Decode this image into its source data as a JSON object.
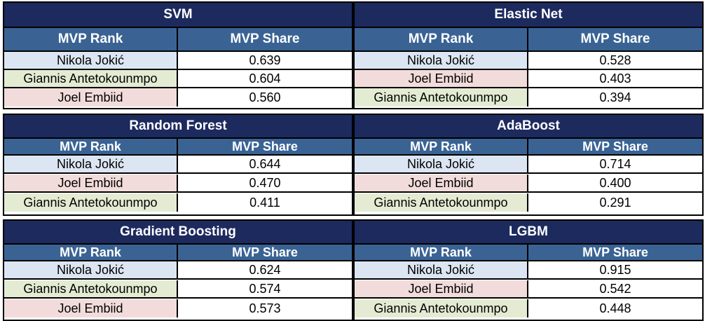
{
  "colors": {
    "title_bg": "#1c2a5e",
    "header_bg": "#3a6394",
    "jokic_bg": "#dce6f2",
    "giannis_bg": "#e3ecd3",
    "embiid_bg": "#f2dcdb"
  },
  "tables": [
    {
      "title": "SVM",
      "col1": "MVP Rank",
      "col2": "MVP Share",
      "rows": [
        {
          "player": "Nikola Jokić",
          "share": "0.639",
          "color": "#dce6f2"
        },
        {
          "player": "Giannis Antetokounmpo",
          "share": "0.604",
          "color": "#e3ecd3"
        },
        {
          "player": "Joel Embiid",
          "share": "0.560",
          "color": "#f2dcdb"
        }
      ]
    },
    {
      "title": "Elastic Net",
      "col1": "MVP Rank",
      "col2": "MVP Share",
      "rows": [
        {
          "player": "Nikola Jokić",
          "share": "0.528",
          "color": "#dce6f2"
        },
        {
          "player": "Joel Embiid",
          "share": "0.403",
          "color": "#f2dcdb"
        },
        {
          "player": "Giannis Antetokounmpo",
          "share": "0.394",
          "color": "#e3ecd3"
        }
      ]
    },
    {
      "title": "Random Forest",
      "col1": "MVP Rank",
      "col2": "MVP Share",
      "rows": [
        {
          "player": "Nikola Jokić",
          "share": "0.644",
          "color": "#dce6f2"
        },
        {
          "player": "Joel Embiid",
          "share": "0.470",
          "color": "#f2dcdb"
        },
        {
          "player": "Giannis Antetokounmpo",
          "share": "0.411",
          "color": "#e3ecd3"
        }
      ]
    },
    {
      "title": "AdaBoost",
      "col1": "MVP Rank",
      "col2": "MVP Share",
      "rows": [
        {
          "player": "Nikola Jokić",
          "share": "0.714",
          "color": "#dce6f2"
        },
        {
          "player": "Joel Embiid",
          "share": "0.400",
          "color": "#f2dcdb"
        },
        {
          "player": "Giannis Antetokounmpo",
          "share": "0.291",
          "color": "#e3ecd3"
        }
      ]
    },
    {
      "title": "Gradient Boosting",
      "col1": "MVP Rank",
      "col2": "MVP Share",
      "rows": [
        {
          "player": "Nikola Jokić",
          "share": "0.624",
          "color": "#dce6f2"
        },
        {
          "player": "Giannis Antetokounmpo",
          "share": "0.574",
          "color": "#e3ecd3"
        },
        {
          "player": "Joel Embiid",
          "share": "0.573",
          "color": "#f2dcdb"
        }
      ]
    },
    {
      "title": "LGBM",
      "col1": "MVP Rank",
      "col2": "MVP Share",
      "rows": [
        {
          "player": "Nikola Jokić",
          "share": "0.915",
          "color": "#dce6f2"
        },
        {
          "player": "Joel Embiid",
          "share": "0.542",
          "color": "#f2dcdb"
        },
        {
          "player": "Giannis Antetokounmpo",
          "share": "0.448",
          "color": "#e3ecd3"
        }
      ]
    }
  ]
}
